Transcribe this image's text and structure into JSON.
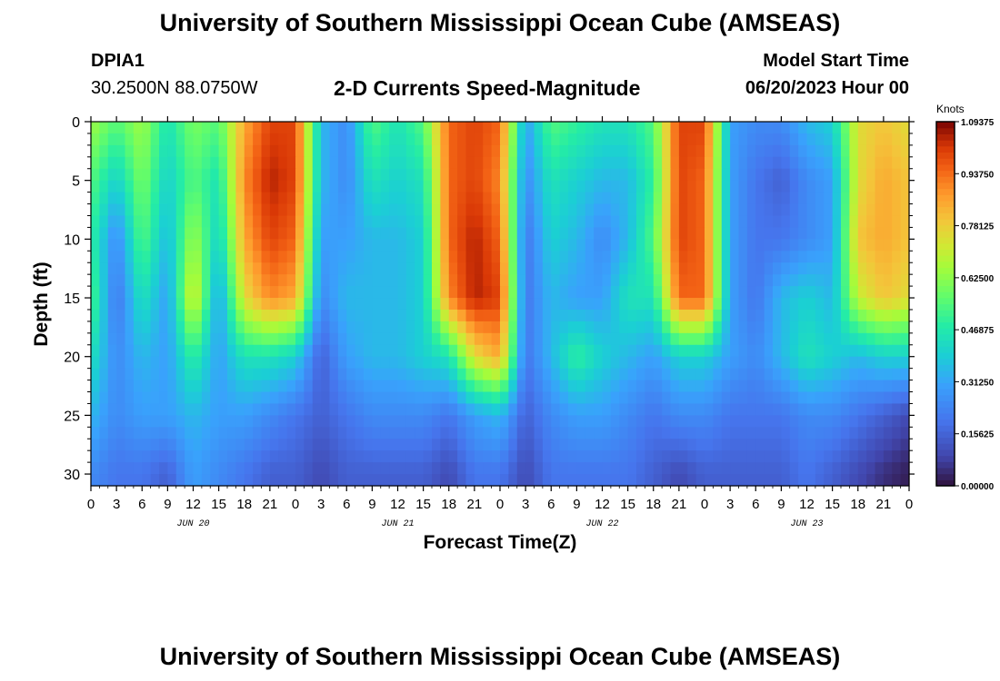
{
  "header": {
    "main_title": "University of Southern Mississippi Ocean Cube (AMSEAS)",
    "station_id": "DPIA1",
    "station_coords": "30.2500N  88.0750W",
    "chart_title": "2-D Currents Speed-Magnitude",
    "model_start_label": "Model Start Time",
    "model_start_value": "06/20/2023 Hour 00"
  },
  "footer": {
    "repeated_title": "University of Southern Mississippi Ocean Cube (AMSEAS)"
  },
  "chart_data": {
    "type": "heatmap",
    "title": "2-D Currents Speed-Magnitude",
    "xlabel": "Forecast Time(Z)",
    "ylabel": "Depth (ft)",
    "x_range_hours": [
      0,
      96
    ],
    "y_range_ft": [
      0,
      31
    ],
    "y_ticks": [
      0,
      5,
      10,
      15,
      20,
      25,
      30
    ],
    "x_tick_labels": [
      "0",
      "3",
      "6",
      "9",
      "12",
      "15",
      "18",
      "21",
      "0",
      "3",
      "6",
      "9",
      "12",
      "15",
      "18",
      "21",
      "0",
      "3",
      "6",
      "9",
      "12",
      "15",
      "18",
      "21",
      "0",
      "3",
      "6",
      "9",
      "12",
      "15",
      "18",
      "21",
      "0"
    ],
    "day_labels": [
      {
        "label": "JUN 20",
        "hour": 12
      },
      {
        "label": "JUN 21",
        "hour": 36
      },
      {
        "label": "JUN 22",
        "hour": 60
      },
      {
        "label": "JUN 23",
        "hour": 84
      }
    ],
    "colorbar": {
      "unit": "Knots",
      "min": 0.0,
      "max": 1.09375,
      "tick_labels": [
        "1.09375",
        "0.93750",
        "0.78125",
        "0.62500",
        "0.46875",
        "0.31250",
        "0.15625",
        "0.00000"
      ],
      "tick_values": [
        1.09375,
        0.9375,
        0.78125,
        0.625,
        0.46875,
        0.3125,
        0.15625,
        0.0
      ]
    },
    "grid_depths_ft": [
      0,
      5,
      10,
      15,
      20,
      25,
      30
    ],
    "grid_hours": [
      0,
      3,
      6,
      9,
      12,
      15,
      18,
      21,
      24,
      27,
      30,
      33,
      36,
      39,
      42,
      45,
      48,
      51,
      54,
      57,
      60,
      63,
      66,
      69,
      72,
      75,
      78,
      81,
      84,
      87,
      90,
      93,
      96
    ],
    "speed_knots": [
      [
        0.65,
        0.55,
        0.65,
        0.45,
        0.6,
        0.55,
        0.85,
        1.0,
        1.0,
        0.35,
        0.25,
        0.55,
        0.45,
        0.55,
        0.95,
        1.0,
        0.95,
        0.3,
        0.55,
        0.5,
        0.45,
        0.45,
        0.55,
        1.0,
        1.0,
        0.3,
        0.25,
        0.25,
        0.35,
        0.4,
        0.75,
        0.8,
        0.75
      ],
      [
        0.55,
        0.4,
        0.6,
        0.4,
        0.55,
        0.45,
        0.9,
        1.05,
        1.0,
        0.35,
        0.25,
        0.45,
        0.4,
        0.45,
        0.95,
        1.0,
        0.9,
        0.25,
        0.45,
        0.4,
        0.35,
        0.35,
        0.5,
        1.0,
        0.95,
        0.3,
        0.2,
        0.15,
        0.25,
        0.3,
        0.75,
        0.85,
        0.8
      ],
      [
        0.5,
        0.25,
        0.55,
        0.35,
        0.65,
        0.4,
        0.85,
        1.0,
        0.95,
        0.3,
        0.3,
        0.35,
        0.35,
        0.4,
        0.95,
        1.05,
        0.95,
        0.2,
        0.4,
        0.35,
        0.25,
        0.35,
        0.55,
        1.0,
        0.95,
        0.3,
        0.2,
        0.2,
        0.25,
        0.3,
        0.8,
        0.85,
        0.8
      ],
      [
        0.55,
        0.2,
        0.45,
        0.3,
        0.75,
        0.3,
        0.75,
        0.9,
        0.85,
        0.25,
        0.35,
        0.35,
        0.35,
        0.4,
        0.9,
        1.05,
        1.0,
        0.2,
        0.35,
        0.3,
        0.3,
        0.45,
        0.45,
        0.95,
        0.95,
        0.3,
        0.2,
        0.35,
        0.4,
        0.35,
        0.7,
        0.8,
        0.75
      ],
      [
        0.45,
        0.25,
        0.35,
        0.3,
        0.5,
        0.3,
        0.45,
        0.45,
        0.4,
        0.15,
        0.3,
        0.35,
        0.35,
        0.4,
        0.45,
        0.75,
        0.85,
        0.2,
        0.35,
        0.5,
        0.4,
        0.35,
        0.3,
        0.4,
        0.4,
        0.3,
        0.25,
        0.35,
        0.45,
        0.4,
        0.35,
        0.4,
        0.4
      ],
      [
        0.35,
        0.25,
        0.3,
        0.3,
        0.35,
        0.3,
        0.3,
        0.25,
        0.2,
        0.15,
        0.2,
        0.25,
        0.25,
        0.25,
        0.2,
        0.3,
        0.35,
        0.15,
        0.25,
        0.3,
        0.3,
        0.25,
        0.2,
        0.25,
        0.25,
        0.2,
        0.2,
        0.2,
        0.25,
        0.25,
        0.2,
        0.15,
        0.1
      ],
      [
        0.25,
        0.2,
        0.2,
        0.15,
        0.3,
        0.25,
        0.2,
        0.15,
        0.15,
        0.1,
        0.15,
        0.15,
        0.15,
        0.15,
        0.1,
        0.2,
        0.2,
        0.1,
        0.2,
        0.2,
        0.2,
        0.2,
        0.15,
        0.1,
        0.15,
        0.15,
        0.15,
        0.15,
        0.2,
        0.15,
        0.1,
        0.05,
        0.02
      ]
    ]
  }
}
